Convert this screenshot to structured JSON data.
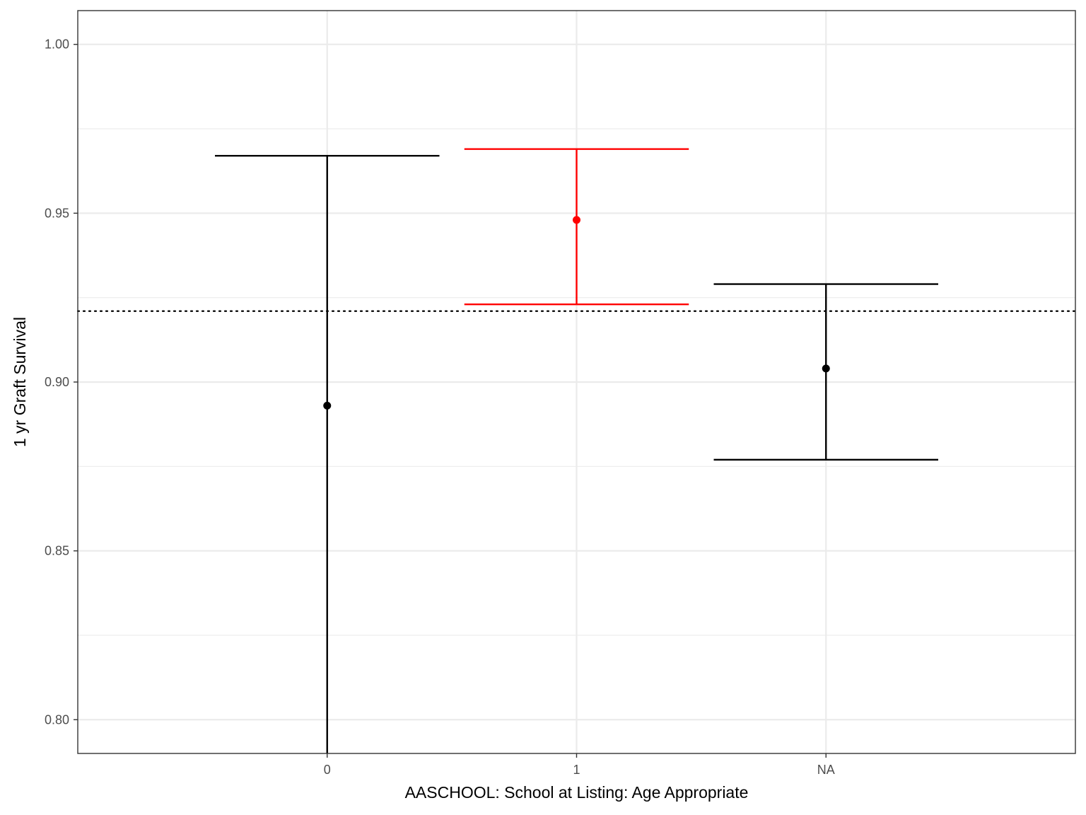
{
  "chart_data": {
    "type": "errorbar",
    "xlabel": "AASCHOOL: School at Listing: Age Appropriate",
    "ylabel": "1 yr Graft Survival",
    "categories": [
      "0",
      "1",
      "NA"
    ],
    "estimate": [
      0.893,
      0.948,
      0.904
    ],
    "lower": [
      0.79,
      0.923,
      0.877
    ],
    "upper": [
      0.967,
      0.969,
      0.929
    ],
    "point_colors": [
      "#000000",
      "#ff0000",
      "#000000"
    ],
    "reference_line": 0.921,
    "ylim": [
      0.79,
      1.01
    ],
    "yticks": [
      0.8,
      0.85,
      0.9,
      0.95,
      1.0
    ],
    "ytick_labels": [
      "0.80",
      "0.85",
      "0.90",
      "0.95",
      "1.00"
    ],
    "grid": true,
    "colors": {
      "grid": "#ebebeb",
      "panel_border": "#333333",
      "highlight": "#ff0000",
      "default": "#000000"
    }
  }
}
